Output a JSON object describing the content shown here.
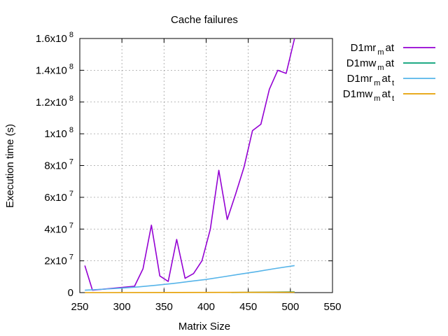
{
  "chart_data": {
    "type": "line",
    "title": "Cache failures",
    "xlabel": "Matrix Size",
    "ylabel": "Execution time (s)",
    "xlim": [
      250,
      550
    ],
    "ylim": [
      0,
      160000000
    ],
    "grid": true,
    "legend_position": "outside-right",
    "x_ticks": [
      {
        "value": 250,
        "label": "250"
      },
      {
        "value": 300,
        "label": "300"
      },
      {
        "value": 350,
        "label": "350"
      },
      {
        "value": 400,
        "label": "400"
      },
      {
        "value": 450,
        "label": "450"
      },
      {
        "value": 500,
        "label": "500"
      },
      {
        "value": 550,
        "label": "550"
      }
    ],
    "y_ticks": [
      {
        "value": 0,
        "mantissa": "0",
        "exp": ""
      },
      {
        "value": 20000000,
        "mantissa": "2x10",
        "exp": "7"
      },
      {
        "value": 40000000,
        "mantissa": "4x10",
        "exp": "7"
      },
      {
        "value": 60000000,
        "mantissa": "6x10",
        "exp": "7"
      },
      {
        "value": 80000000,
        "mantissa": "8x10",
        "exp": "7"
      },
      {
        "value": 100000000,
        "mantissa": "1x10",
        "exp": "8"
      },
      {
        "value": 120000000,
        "mantissa": "1.2x10",
        "exp": "8"
      },
      {
        "value": 140000000,
        "mantissa": "1.4x10",
        "exp": "8"
      },
      {
        "value": 160000000,
        "mantissa": "1.6x10",
        "exp": "8"
      }
    ],
    "series": [
      {
        "label_main": "D1mr",
        "label_sub": "m",
        "label_tail": "at",
        "label_tail_sub": "",
        "color": "#9400d3",
        "x": [
          256,
          265,
          315,
          325,
          335,
          345,
          355,
          365,
          375,
          385,
          395,
          405,
          415,
          425,
          435,
          445,
          455,
          465,
          475,
          485,
          495,
          505
        ],
        "y": [
          17000000,
          1500000,
          4000000,
          15000000,
          42500000,
          10500000,
          7000000,
          33500000,
          9000000,
          12000000,
          20000000,
          40000000,
          77000000,
          46000000,
          62000000,
          79000000,
          102000000,
          106000000,
          128000000,
          140000000,
          138000000,
          160000000
        ]
      },
      {
        "label_main": "D1mw",
        "label_sub": "m",
        "label_tail": "at",
        "label_tail_sub": "",
        "color": "#009e73",
        "x": [
          430,
          505
        ],
        "y": [
          100000,
          400000
        ]
      },
      {
        "label_main": "D1mr",
        "label_sub": "m",
        "label_tail": "at",
        "label_tail_sub": "t",
        "color": "#56b4e9",
        "x": [
          256,
          280,
          300,
          320,
          340,
          360,
          380,
          400,
          420,
          440,
          460,
          480,
          505
        ],
        "y": [
          1500000,
          2200000,
          2800000,
          3600000,
          4600000,
          5700000,
          7000000,
          8300000,
          9900000,
          11600000,
          13200000,
          15000000,
          17000000
        ]
      },
      {
        "label_main": "D1mw",
        "label_sub": "m",
        "label_tail": "at",
        "label_tail_sub": "t",
        "color": "#e69f00",
        "x": [
          256,
          505
        ],
        "y": [
          0,
          200000
        ]
      }
    ]
  }
}
